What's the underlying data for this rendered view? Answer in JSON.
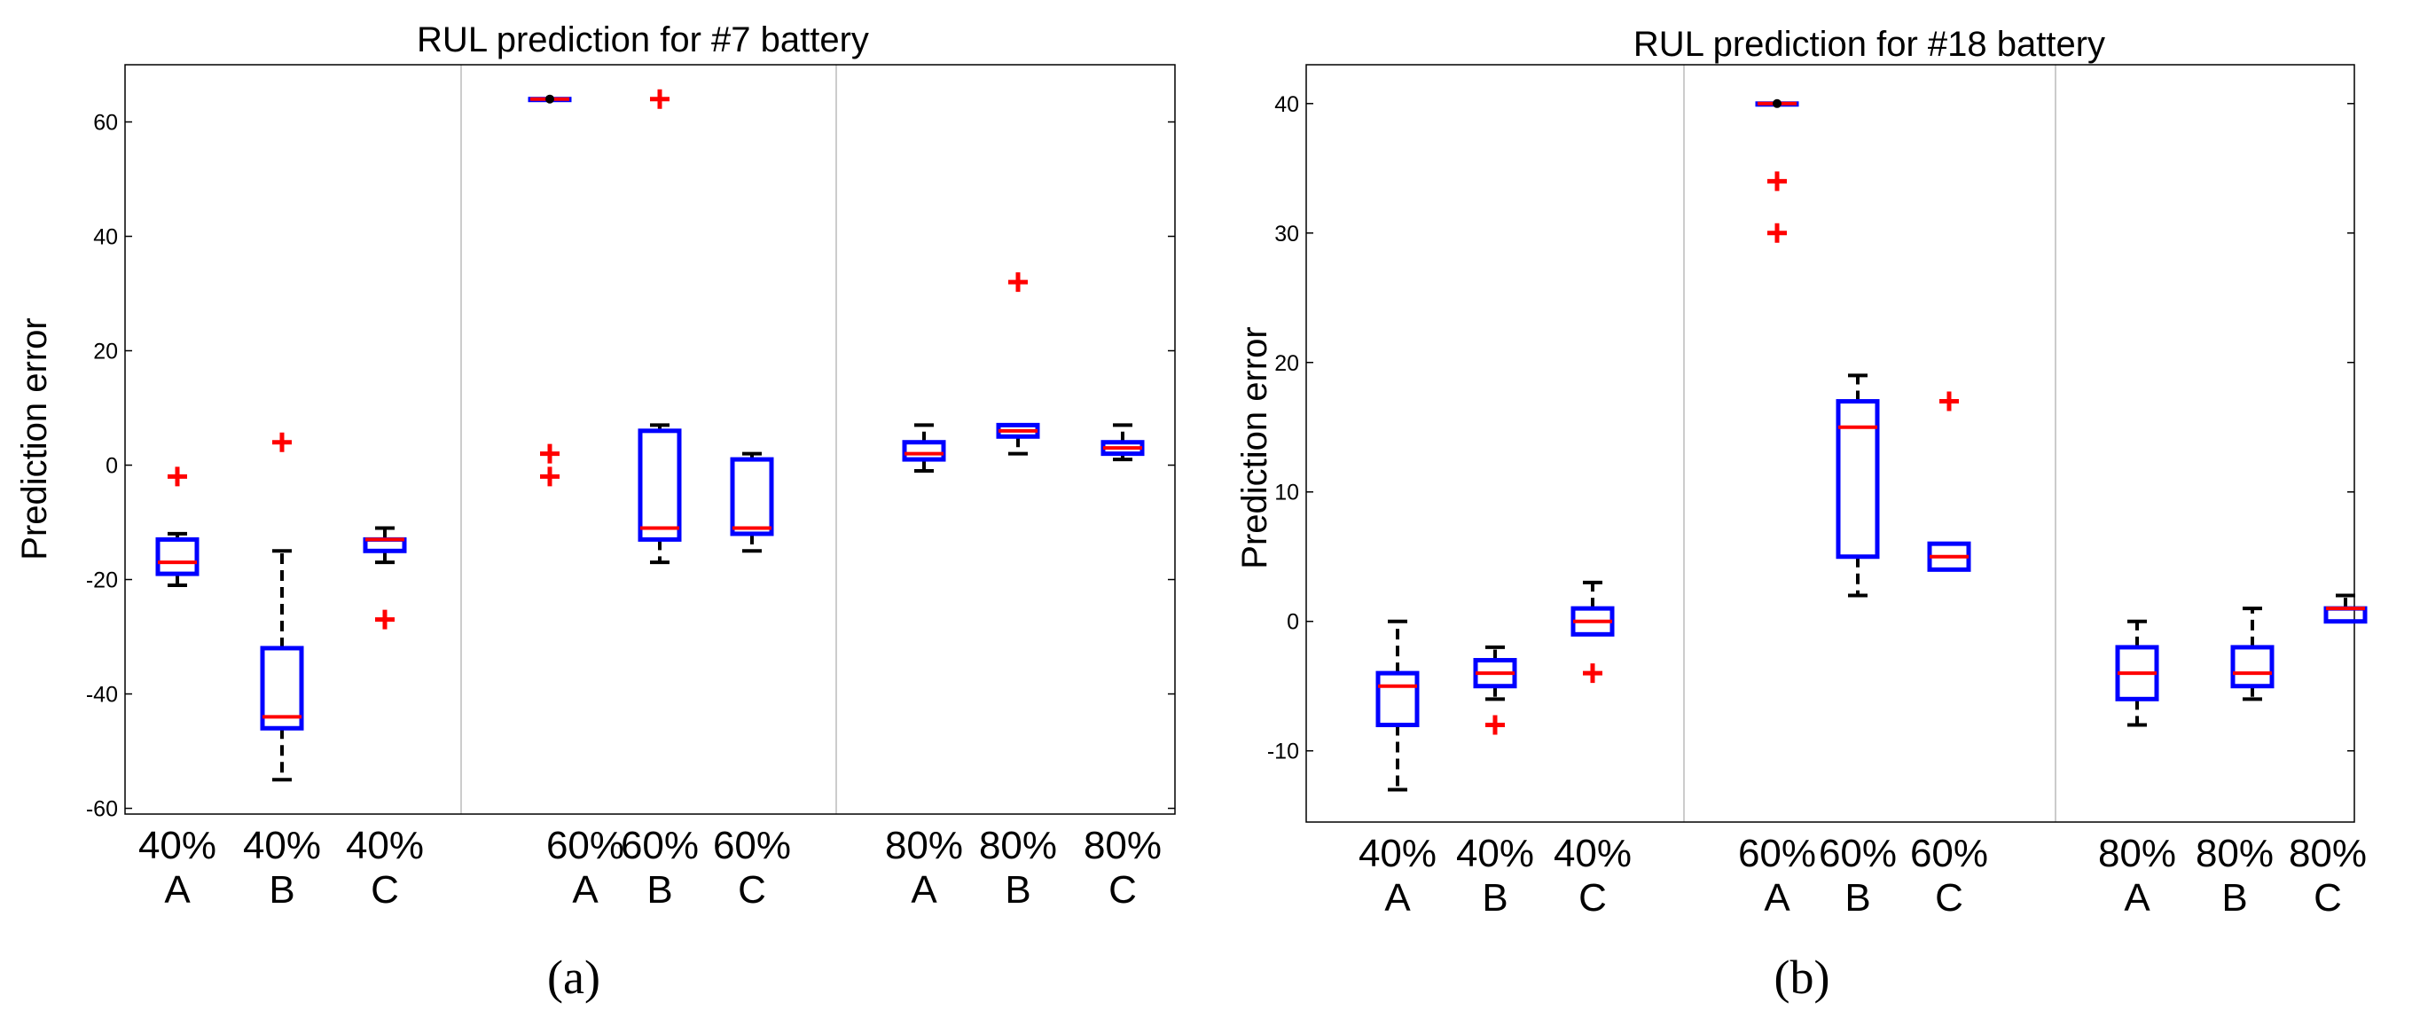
{
  "chart_data": [
    {
      "type": "box",
      "title": "RUL prediction for #7 battery",
      "ylabel": "Prediction error",
      "xlabel": "",
      "ylim": [
        -61,
        70
      ],
      "yticks": [
        -60,
        -40,
        -20,
        0,
        20,
        40,
        60
      ],
      "subcaption": "(a)",
      "groups": [
        "40%",
        "60%",
        "80%"
      ],
      "categories": [
        {
          "pct": "40%",
          "method": "A"
        },
        {
          "pct": "40%",
          "method": "B"
        },
        {
          "pct": "40%",
          "method": "C"
        },
        {
          "pct": "60%",
          "method": "A"
        },
        {
          "pct": "60%",
          "method": "B"
        },
        {
          "pct": "60%",
          "method": "C"
        },
        {
          "pct": "80%",
          "method": "A"
        },
        {
          "pct": "80%",
          "method": "B"
        },
        {
          "pct": "80%",
          "method": "C"
        }
      ],
      "boxes": [
        {
          "whisker_low": -21,
          "q1": -19,
          "median": -17,
          "q3": -13,
          "whisker_high": -12,
          "outliers": [
            -2
          ]
        },
        {
          "whisker_low": -55,
          "q1": -46,
          "median": -44,
          "q3": -32,
          "whisker_high": -15,
          "outliers": [
            4
          ]
        },
        {
          "whisker_low": -17,
          "q1": -15,
          "median": -13,
          "q3": -13,
          "whisker_high": -11,
          "outliers": [
            -27
          ]
        },
        {
          "whisker_low": 64,
          "q1": 64,
          "median": 64,
          "q3": 64,
          "whisker_high": 64,
          "outliers": [
            2,
            -2
          ]
        },
        {
          "whisker_low": -17,
          "q1": -13,
          "median": -11,
          "q3": 6,
          "whisker_high": 7,
          "outliers": [
            64
          ]
        },
        {
          "whisker_low": -15,
          "q1": -12,
          "median": -11,
          "q3": 1,
          "whisker_high": 2,
          "outliers": []
        },
        {
          "whisker_low": -1,
          "q1": 1,
          "median": 2,
          "q3": 4,
          "whisker_high": 7,
          "outliers": []
        },
        {
          "whisker_low": 2,
          "q1": 5,
          "median": 6,
          "q3": 7,
          "whisker_high": 7,
          "outliers": [
            32
          ]
        },
        {
          "whisker_low": 1,
          "q1": 2,
          "median": 3,
          "q3": 4,
          "whisker_high": 7,
          "outliers": []
        }
      ]
    },
    {
      "type": "box",
      "title": "RUL prediction for #18 battery",
      "ylabel": "Prediction error",
      "xlabel": "",
      "ylim": [
        -15.5,
        43
      ],
      "yticks": [
        -10,
        0,
        10,
        20,
        30,
        40
      ],
      "subcaption": "(b)",
      "groups": [
        "40%",
        "60%",
        "80%"
      ],
      "categories": [
        {
          "pct": "40%",
          "method": "A"
        },
        {
          "pct": "40%",
          "method": "B"
        },
        {
          "pct": "40%",
          "method": "C"
        },
        {
          "pct": "60%",
          "method": "A"
        },
        {
          "pct": "60%",
          "method": "B"
        },
        {
          "pct": "60%",
          "method": "C"
        },
        {
          "pct": "80%",
          "method": "A"
        },
        {
          "pct": "80%",
          "method": "B"
        },
        {
          "pct": "80%",
          "method": "C"
        }
      ],
      "boxes": [
        {
          "whisker_low": -13,
          "q1": -8,
          "median": -5,
          "q3": -4,
          "whisker_high": 0,
          "outliers": []
        },
        {
          "whisker_low": -6,
          "q1": -5,
          "median": -4,
          "q3": -3,
          "whisker_high": -2,
          "outliers": [
            -8
          ]
        },
        {
          "whisker_low": -1,
          "q1": -1,
          "median": 0,
          "q3": 1,
          "whisker_high": 3,
          "outliers": [
            -4
          ]
        },
        {
          "whisker_low": 40,
          "q1": 40,
          "median": 40,
          "q3": 40,
          "whisker_high": 40,
          "outliers": [
            34,
            30
          ]
        },
        {
          "whisker_low": 2,
          "q1": 5,
          "median": 15,
          "q3": 17,
          "whisker_high": 19,
          "outliers": []
        },
        {
          "whisker_low": 4,
          "q1": 4,
          "median": 5,
          "q3": 6,
          "whisker_high": 6,
          "outliers": [
            17
          ]
        },
        {
          "whisker_low": -8,
          "q1": -6,
          "median": -4,
          "q3": -2,
          "whisker_high": 0,
          "outliers": []
        },
        {
          "whisker_low": -6,
          "q1": -5,
          "median": -4,
          "q3": -2,
          "whisker_high": 1,
          "outliers": []
        },
        {
          "whisker_low": 0,
          "q1": 0,
          "median": 1,
          "q3": 1,
          "whisker_high": 2,
          "outliers": []
        }
      ]
    }
  ],
  "colors": {
    "box": "#0000ff",
    "median": "#ff0000",
    "whisker": "#000000",
    "outlier": "#ff0000",
    "separator": "#cccccc",
    "axis": "#000000"
  }
}
